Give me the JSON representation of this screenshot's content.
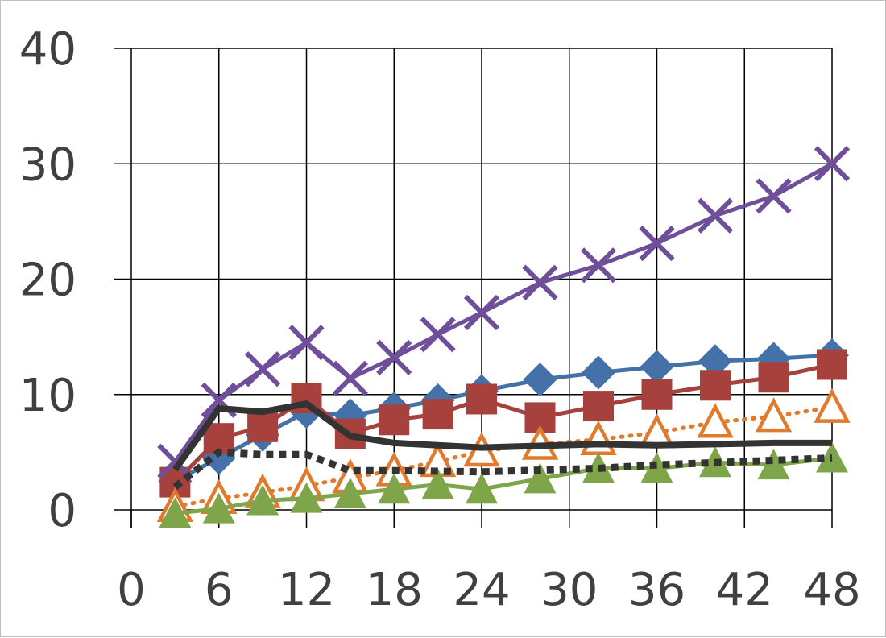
{
  "chart_data": {
    "type": "line",
    "title": "",
    "xlabel": "",
    "ylabel": "",
    "xlim": [
      0,
      48
    ],
    "ylim": [
      0,
      40
    ],
    "x_ticks": [
      0,
      6,
      12,
      18,
      24,
      30,
      36,
      42,
      48
    ],
    "y_ticks": [
      0,
      10,
      20,
      30,
      40
    ],
    "x_tick_labels": [
      "0",
      "6",
      "12",
      "18",
      "24",
      "30",
      "36",
      "42",
      "48"
    ],
    "y_tick_labels": [
      "0",
      "10",
      "20",
      "30",
      "40"
    ],
    "grid": true,
    "legend": "none",
    "series": [
      {
        "color": "#4472a8",
        "line_style": "solid",
        "marker": "diamond",
        "x": [
          3,
          6,
          9,
          12,
          15,
          18,
          21,
          24,
          28,
          32,
          36,
          40,
          44,
          48
        ],
        "y": [
          2.5,
          4.5,
          6.5,
          8.5,
          8.2,
          8.8,
          9.5,
          10.3,
          11.3,
          11.9,
          12.4,
          12.9,
          13.1,
          13.4
        ]
      },
      {
        "color": "#a6413d",
        "line_style": "solid",
        "marker": "square",
        "x": [
          3,
          6,
          9,
          12,
          15,
          18,
          21,
          24,
          28,
          32,
          36,
          40,
          44,
          48
        ],
        "y": [
          2.4,
          6.2,
          7.2,
          9.7,
          6.6,
          7.8,
          8.3,
          9.6,
          8.0,
          9.0,
          10.0,
          10.8,
          11.5,
          12.6
        ]
      },
      {
        "color": "#6f4f9a",
        "line_style": "solid",
        "marker": "x",
        "x": [
          3,
          6,
          9,
          12,
          15,
          18,
          21,
          24,
          28,
          32,
          36,
          40,
          44,
          48
        ],
        "y": [
          4.2,
          9.5,
          12.2,
          14.5,
          11.4,
          13.2,
          15.2,
          17.1,
          19.7,
          21.2,
          23.1,
          25.5,
          27.2,
          30.0
        ]
      },
      {
        "color": "#e07b2e",
        "line_style": "dotted",
        "marker": "triangle-open",
        "x": [
          3,
          6,
          9,
          12,
          15,
          18,
          21,
          24,
          28,
          32,
          36,
          40,
          44,
          48
        ],
        "y": [
          0.3,
          1.0,
          1.5,
          2.1,
          2.8,
          3.4,
          4.2,
          5.1,
          5.7,
          6.1,
          6.7,
          7.6,
          8.1,
          8.9
        ]
      },
      {
        "color": "#7fa54a",
        "line_style": "solid",
        "marker": "triangle",
        "x": [
          3,
          6,
          9,
          12,
          15,
          18,
          21,
          24,
          28,
          32,
          36,
          40,
          44,
          48
        ],
        "y": [
          -0.3,
          0.1,
          0.8,
          1.0,
          1.4,
          1.8,
          2.2,
          1.8,
          2.7,
          3.6,
          3.6,
          4.1,
          3.9,
          4.5
        ]
      },
      {
        "color": "#333333",
        "line_style": "solid-thick",
        "marker": "none",
        "x": [
          3,
          6,
          9,
          12,
          15,
          18,
          24,
          32,
          36,
          40,
          44,
          48
        ],
        "y": [
          3.5,
          8.8,
          8.5,
          9.2,
          6.4,
          5.8,
          5.4,
          5.7,
          5.6,
          5.7,
          5.8,
          5.8
        ]
      },
      {
        "color": "#333333",
        "line_style": "dashed-thick",
        "marker": "none",
        "x": [
          3,
          6,
          9,
          12,
          15,
          18,
          24,
          32,
          36,
          40,
          44,
          48
        ],
        "y": [
          2.0,
          5.0,
          4.8,
          4.8,
          3.4,
          3.4,
          3.3,
          3.6,
          3.9,
          4.1,
          4.3,
          4.5
        ]
      }
    ]
  }
}
